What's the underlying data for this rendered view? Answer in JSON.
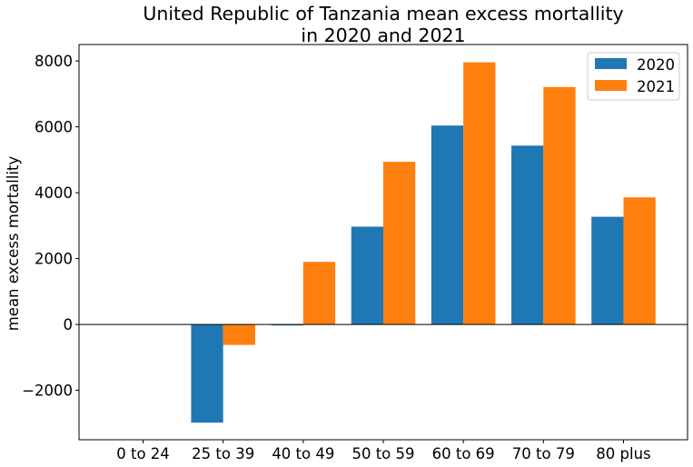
{
  "chart_data": {
    "type": "bar",
    "title_lines": [
      "United Republic of Tanzania mean excess mortallity",
      "in 2020 and 2021"
    ],
    "xlabel": "",
    "ylabel": "mean excess mortallity",
    "categories": [
      "0 to 24",
      "25 to 39",
      "40 to 49",
      "50 to 59",
      "60 to 69",
      "70 to 79",
      "80 plus"
    ],
    "series": [
      {
        "name": "2020",
        "color": "#1f77b4",
        "values": [
          0,
          -2980,
          -30,
          2970,
          6040,
          5430,
          3270
        ]
      },
      {
        "name": "2021",
        "color": "#ff7f0e",
        "values": [
          0,
          -620,
          1900,
          4940,
          7960,
          7210,
          3860
        ]
      }
    ],
    "ylim": [
      -3500,
      8500
    ],
    "yticks": [
      -2000,
      0,
      2000,
      4000,
      6000,
      8000
    ],
    "ytick_labels": [
      "−2000",
      "0",
      "2000",
      "4000",
      "6000",
      "8000"
    ],
    "zero_line": true,
    "grid": false,
    "legend_position": "top-right"
  }
}
